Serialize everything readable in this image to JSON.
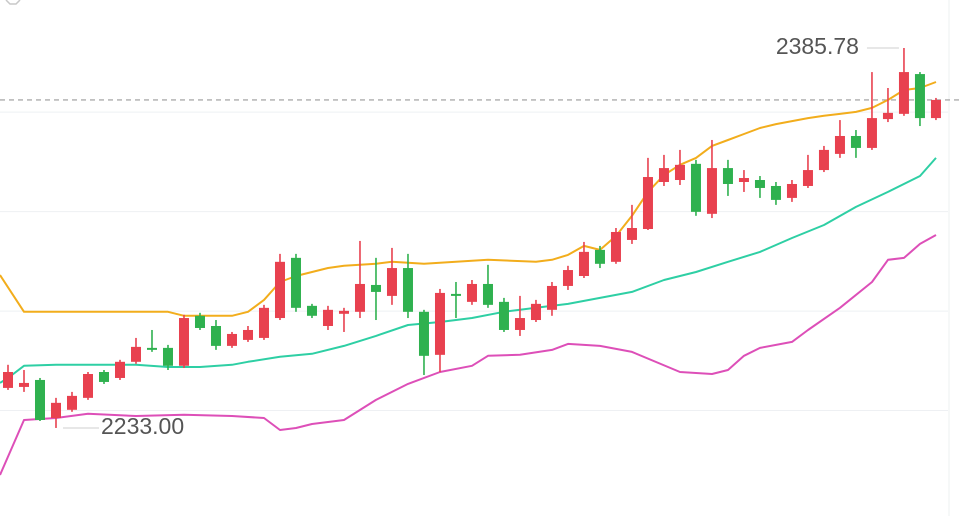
{
  "chart_data": {
    "type": "candlestick",
    "open": [
      2249.1,
      2249.5,
      2252.3,
      2237.0,
      2240.3,
      2245.1,
      2255.5,
      2253.1,
      2259.6,
      2265.2,
      2265.2,
      2258.0,
      2278.1,
      2274.0,
      2266.0,
      2268.4,
      2269.2,
      2277.2,
      2301.4,
      2282.1,
      2274.0,
      2278.9,
      2279.7,
      2290.5,
      2286.1,
      2297.3,
      2279.7,
      2262.4,
      2286.9,
      2283.7,
      2290.9,
      2283.7,
      2272.4,
      2276.4,
      2280.5,
      2290.1,
      2294.1,
      2304.6,
      2299.8,
      2308.6,
      2313.0,
      2331.9,
      2332.7,
      2339.2,
      2319.1,
      2337.5,
      2331.9,
      2332.7,
      2330.3,
      2325.5,
      2330.3,
      2336.7,
      2343.2,
      2350.4,
      2345.6,
      2357.2,
      2359.3,
      2375.3,
      2357.6
    ],
    "high": [
      2258.4,
      2256.3,
      2253.1,
      2245.1,
      2247.5,
      2255.5,
      2256.3,
      2260.4,
      2269.2,
      2272.4,
      2266.4,
      2278.5,
      2279.3,
      2276.4,
      2271.6,
      2274.0,
      2282.5,
      2303.0,
      2303.0,
      2282.9,
      2282.1,
      2281.3,
      2308.2,
      2301.4,
      2305.4,
      2303.0,
      2280.5,
      2288.9,
      2291.7,
      2292.5,
      2298.6,
      2285.3,
      2286.1,
      2284.5,
      2291.7,
      2298.2,
      2307.8,
      2306.2,
      2313.4,
      2322.7,
      2341.6,
      2342.8,
      2344.8,
      2340.8,
      2348.8,
      2340.8,
      2336.7,
      2334.3,
      2331.9,
      2332.7,
      2342.8,
      2346.4,
      2356.8,
      2352.8,
      2376.1,
      2369.7,
      2385.78,
      2376.1,
      2365.7
    ],
    "low": [
      2248.3,
      2247.5,
      2235.8,
      2233.0,
      2239.5,
      2244.3,
      2250.7,
      2252.3,
      2258.8,
      2263.6,
      2256.3,
      2257.1,
      2272.4,
      2264.4,
      2265.2,
      2267.6,
      2268.4,
      2276.4,
      2279.7,
      2277.2,
      2272.4,
      2271.6,
      2277.2,
      2276.4,
      2282.5,
      2277.2,
      2254.3,
      2255.5,
      2277.2,
      2282.5,
      2281.3,
      2271.6,
      2270.0,
      2275.6,
      2278.1,
      2288.5,
      2293.3,
      2297.3,
      2299.0,
      2307.0,
      2312.6,
      2330.3,
      2330.7,
      2318.3,
      2317.4,
      2326.3,
      2327.9,
      2325.5,
      2322.7,
      2323.9,
      2329.5,
      2335.9,
      2341.6,
      2341.6,
      2344.8,
      2356.0,
      2358.5,
      2354.4,
      2356.8
    ],
    "close": [
      2255.5,
      2251.1,
      2236.2,
      2243.1,
      2245.9,
      2254.7,
      2251.5,
      2259.6,
      2265.6,
      2264.4,
      2258.0,
      2277.2,
      2273.2,
      2266.0,
      2270.8,
      2272.4,
      2281.3,
      2299.8,
      2281.3,
      2278.1,
      2280.5,
      2280.1,
      2290.9,
      2287.7,
      2297.3,
      2279.7,
      2262.0,
      2287.3,
      2286.1,
      2290.9,
      2282.5,
      2272.4,
      2277.2,
      2282.9,
      2290.1,
      2296.5,
      2303.8,
      2299.0,
      2311.8,
      2313.4,
      2333.9,
      2337.5,
      2338.8,
      2319.9,
      2337.5,
      2331.1,
      2333.5,
      2329.5,
      2324.7,
      2331.1,
      2336.7,
      2344.8,
      2350.4,
      2345.6,
      2357.6,
      2359.7,
      2376.1,
      2357.6,
      2364.9
    ],
    "up_color": "#e8414f",
    "down_color": "#2fb14f",
    "series": [
      {
        "color": "#f2ad1c",
        "x": [
          -0.5,
          1,
          10,
          11,
          14,
          15,
          16,
          17,
          18,
          19,
          20,
          21,
          23,
          24,
          26,
          28,
          30,
          33,
          34,
          35,
          36,
          37,
          38,
          39,
          40,
          41,
          42,
          43,
          44,
          45,
          46,
          47,
          48,
          49,
          50,
          51,
          52,
          53,
          54,
          55,
          56,
          57,
          58
        ],
        "values": [
          2294.5,
          2279.7,
          2279.7,
          2278.1,
          2278.1,
          2279.7,
          2284.5,
          2291.7,
          2294.1,
          2295.7,
          2297.3,
          2298.2,
          2299.0,
          2299.8,
          2299.0,
          2299.8,
          2300.6,
          2299.8,
          2300.6,
          2302.6,
          2306.2,
          2304.6,
          2310.2,
          2318.3,
          2327.9,
          2334.7,
          2338.8,
          2341.6,
          2346.4,
          2348.8,
          2351.2,
          2353.6,
          2355.2,
          2356.4,
          2357.6,
          2358.5,
          2359.3,
          2360.1,
          2361.7,
          2364.9,
          2368.9,
          2369.7,
          2372.1
        ]
      },
      {
        "color": "#2ecfa4",
        "x": [
          -0.5,
          0,
          1,
          3,
          8,
          10,
          12,
          14,
          15,
          17,
          19,
          21,
          23,
          25,
          27,
          29,
          31,
          33,
          35,
          37,
          39,
          41,
          43,
          45,
          47,
          49,
          51,
          53,
          55,
          57,
          58
        ],
        "values": [
          2251.1,
          2253.1,
          2258.0,
          2258.4,
          2258.4,
          2257.5,
          2257.5,
          2258.4,
          2259.6,
          2261.6,
          2262.8,
          2266.0,
          2270.0,
          2274.4,
          2275.6,
          2277.2,
          2279.7,
          2281.3,
          2282.9,
          2285.3,
          2287.7,
          2292.5,
          2295.7,
          2299.8,
          2303.8,
          2309.4,
          2314.6,
          2321.9,
          2327.9,
          2334.3,
          2341.6
        ]
      },
      {
        "color": "#dd4fb8",
        "x": [
          -0.5,
          1,
          3,
          5,
          8,
          11,
          14,
          16,
          17,
          18,
          19,
          21,
          23,
          25,
          27,
          29,
          30,
          32,
          34,
          35,
          37,
          39,
          42,
          44,
          45,
          46,
          47,
          49,
          50,
          52,
          54,
          55,
          56,
          57,
          58
        ],
        "values": [
          2214.1,
          2236.2,
          2237.0,
          2238.7,
          2237.8,
          2238.3,
          2237.8,
          2237.0,
          2232.2,
          2233.0,
          2234.6,
          2236.2,
          2244.3,
          2250.7,
          2255.5,
          2258.0,
          2262.0,
          2262.4,
          2264.4,
          2266.8,
          2266.0,
          2263.6,
          2255.5,
          2254.7,
          2256.3,
          2262.0,
          2265.2,
          2267.6,
          2272.4,
          2281.3,
          2291.7,
          2300.6,
          2301.4,
          2307.0,
          2310.6
        ]
      }
    ],
    "annotations": [
      {
        "index": 56,
        "value": 2385.78,
        "label": "2385.78"
      },
      {
        "index": 3,
        "value": 2233.0,
        "label": "2233.00"
      }
    ],
    "reference_line": 2364.9,
    "gridlines": [
      2360,
      2320,
      2280,
      2240
    ],
    "xlim": [
      -0.5,
      59.44
    ],
    "ylim": [
      2197.6,
      2405.08
    ]
  }
}
